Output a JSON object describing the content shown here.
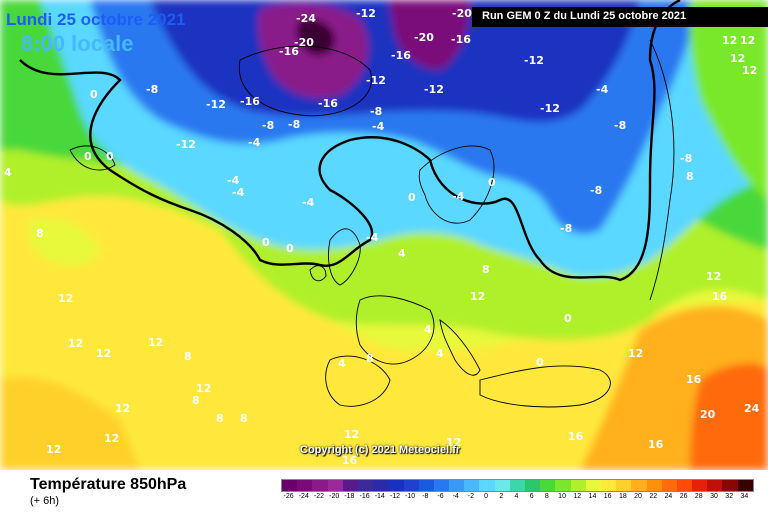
{
  "header": {
    "date": "Lundi 25 octobre 2021",
    "time": "8:00 locale",
    "run": "Run GEM 0 Z du Lundi 25 octobre 2021"
  },
  "footer": {
    "variable": "Température 850hPa",
    "offset": "(+ 6h)",
    "copyright": "Copyright (c) 2021 Meteociel.fr"
  },
  "legend": {
    "ticks": [
      "-26",
      "-24",
      "-22",
      "-20",
      "-18",
      "-16",
      "-14",
      "-12",
      "-10",
      "-8",
      "-6",
      "-4",
      "-2",
      "0",
      "2",
      "4",
      "6",
      "8",
      "10",
      "12",
      "14",
      "16",
      "18",
      "20",
      "22",
      "24",
      "26",
      "28",
      "30",
      "32",
      "34"
    ],
    "colors": [
      "#6a006a",
      "#7a0a7a",
      "#8a1a8a",
      "#9a2a9a",
      "#5a1a8a",
      "#3a2a9a",
      "#2a2aaa",
      "#1a30c0",
      "#2040d0",
      "#1a5ae0",
      "#2a78f0",
      "#3a98f8",
      "#4ab8fc",
      "#5ad8ff",
      "#6ae8ea",
      "#3ad8a8",
      "#2ac86a",
      "#4ad83a",
      "#7ae82a",
      "#b0f02a",
      "#e8f83a",
      "#ffe83a",
      "#ffd02a",
      "#ffb01a",
      "#ff900a",
      "#ff6a0a",
      "#ff4a0a",
      "#e8200a",
      "#c0100a",
      "#8a0505",
      "#3a0000"
    ]
  },
  "iso_labels": [
    {
      "text": "-24"
    },
    {
      "text": "-20"
    },
    {
      "text": "-12"
    },
    {
      "text": "-20"
    },
    {
      "text": "-16"
    },
    {
      "text": "-16"
    },
    {
      "text": "-20"
    },
    {
      "text": "-16"
    },
    {
      "text": "-12"
    },
    {
      "text": "-12"
    },
    {
      "text": "-4"
    },
    {
      "text": "-8"
    },
    {
      "text": "-12"
    },
    {
      "text": "-16"
    },
    {
      "text": "-16"
    },
    {
      "text": "-12"
    },
    {
      "text": "-12"
    },
    {
      "text": "-8"
    },
    {
      "text": "-8"
    },
    {
      "text": "-4"
    },
    {
      "text": "-12"
    },
    {
      "text": "-8"
    },
    {
      "text": "-8"
    },
    {
      "text": "-4"
    },
    {
      "text": "0"
    },
    {
      "text": "0"
    },
    {
      "text": "0"
    },
    {
      "text": "-4"
    },
    {
      "text": "-4"
    },
    {
      "text": "-4"
    },
    {
      "text": "-4"
    },
    {
      "text": "-8"
    },
    {
      "text": "0"
    },
    {
      "text": "0"
    },
    {
      "text": "-4"
    },
    {
      "text": "0"
    },
    {
      "text": "0"
    },
    {
      "text": "-8"
    },
    {
      "text": "-8"
    },
    {
      "text": "8"
    },
    {
      "text": "4"
    },
    {
      "text": "4"
    },
    {
      "text": "8"
    },
    {
      "text": "8"
    },
    {
      "text": "12"
    },
    {
      "text": "12"
    },
    {
      "text": "12"
    },
    {
      "text": "8"
    },
    {
      "text": "12"
    },
    {
      "text": "12"
    },
    {
      "text": "8"
    },
    {
      "text": "4"
    },
    {
      "text": "4"
    },
    {
      "text": "0"
    },
    {
      "text": "0"
    },
    {
      "text": "12"
    },
    {
      "text": "16"
    },
    {
      "text": "20"
    },
    {
      "text": "24"
    },
    {
      "text": "16"
    },
    {
      "text": "12"
    },
    {
      "text": "12"
    },
    {
      "text": "12"
    },
    {
      "text": "8"
    },
    {
      "text": "12"
    },
    {
      "text": "12"
    },
    {
      "text": "8"
    },
    {
      "text": "12"
    },
    {
      "text": "12"
    },
    {
      "text": "12"
    },
    {
      "text": "16"
    },
    {
      "text": "16"
    },
    {
      "text": "12"
    },
    {
      "text": "12"
    },
    {
      "text": "8"
    },
    {
      "text": "4"
    },
    {
      "text": "12"
    },
    {
      "text": "16"
    }
  ]
}
